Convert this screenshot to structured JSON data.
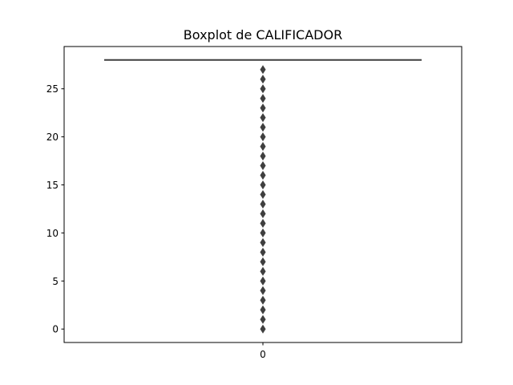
{
  "chart_data": {
    "type": "boxplot",
    "title": "Boxplot de CALIFICADOR",
    "xlabel": "",
    "ylabel": "",
    "categories": [
      "0"
    ],
    "ylim": [
      -1.4,
      29.4
    ],
    "yticks": [
      0,
      5,
      10,
      15,
      20,
      25
    ],
    "grid": false,
    "box": {
      "q1": 28,
      "median": 28,
      "q3": 28,
      "whisker_low": 28,
      "whisker_high": 28
    },
    "outliers": [
      0,
      1,
      2,
      3,
      4,
      5,
      6,
      7,
      8,
      9,
      10,
      11,
      12,
      13,
      14,
      15,
      16,
      17,
      18,
      19,
      20,
      21,
      22,
      23,
      24,
      25,
      26,
      27
    ],
    "colors": {
      "line": "#3f3f3f",
      "outlier": "#3f3f3f",
      "axis": "#000000"
    }
  }
}
